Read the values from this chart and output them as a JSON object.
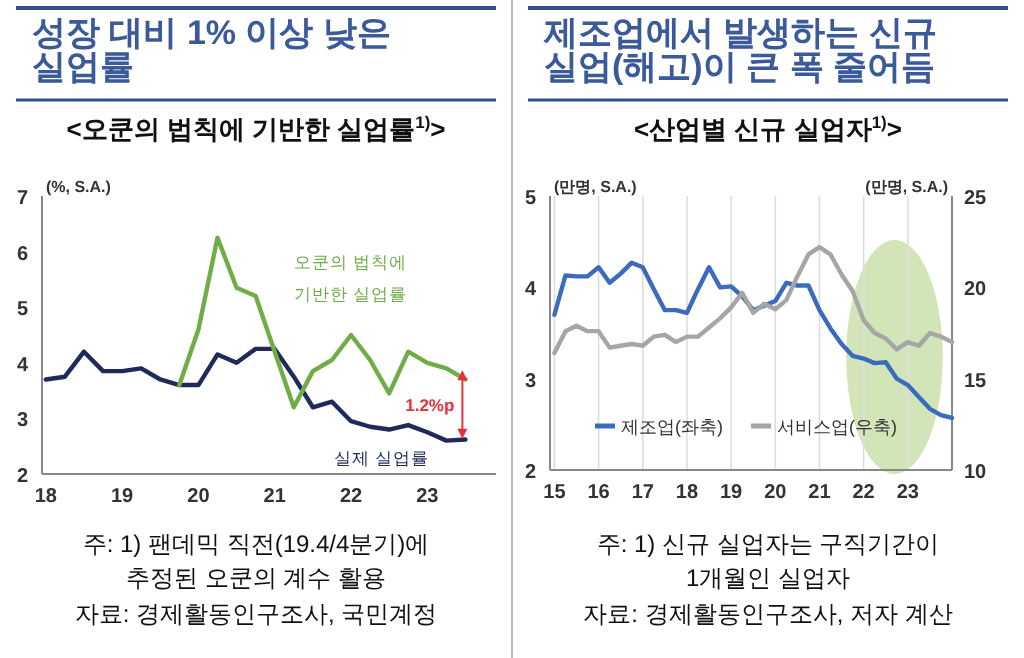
{
  "chart_data": [
    {
      "type": "line",
      "title": "성장 대비 1% 이상 낮은\n실업률",
      "subtitle": "<오쿤의 법칙에 기반한 실업률$^{1)}$>",
      "ylabel": "(%, S.A.)",
      "xlim": [
        17.95,
        23.9
      ],
      "xticks": [
        {
          "value": 18,
          "label": "18"
        },
        {
          "value": 19,
          "label": "19"
        },
        {
          "value": 20,
          "label": "20"
        },
        {
          "value": 21,
          "label": "21"
        },
        {
          "value": 22,
          "label": "22"
        },
        {
          "value": 23,
          "label": "23"
        }
      ],
      "ylim": [
        2,
        7
      ],
      "yticks": [
        2,
        3,
        4,
        5,
        6,
        7
      ],
      "grid": false,
      "legend": false,
      "series": [
        {
          "name": "실제 실업률",
          "color": "#1f2a5c",
          "x": [
            18,
            18.25,
            18.5,
            18.75,
            19,
            19.25,
            19.5,
            19.75,
            20,
            20.25,
            20.5,
            20.75,
            21,
            21.25,
            21.5,
            21.75,
            22,
            22.25,
            22.5,
            22.75,
            23,
            23.25,
            23.5
          ],
          "values": [
            3.7,
            3.75,
            4.2,
            3.85,
            3.85,
            3.9,
            3.7,
            3.6,
            3.6,
            4.15,
            4.0,
            4.25,
            4.25,
            3.75,
            3.2,
            3.3,
            2.95,
            2.85,
            2.8,
            2.88,
            2.75,
            2.6,
            2.62
          ]
        },
        {
          "name": "오쿤의 법칙에\n기반한 실업률",
          "color": "#70ad47",
          "x": [
            19.75,
            20,
            20.25,
            20.5,
            20.75,
            21,
            21.25,
            21.5,
            21.75,
            22,
            22.25,
            22.5,
            22.75,
            23,
            23.25,
            23.5
          ],
          "values": [
            3.6,
            4.6,
            6.25,
            5.35,
            5.2,
            4.2,
            3.2,
            3.85,
            4.05,
            4.5,
            4.05,
            3.45,
            4.2,
            4.0,
            3.9,
            3.7
          ]
        }
      ],
      "annotations": [
        "1.2%p",
        "주: 1) 팬데믹 직전(19.4/4분기)에\n추정된 오쿤의 계수 활용",
        "자료: 경제활동인구조사, 국민계정"
      ]
    },
    {
      "type": "line",
      "title": "제조업에서 발생하는 신규\n실업(해고)이 큰 폭 줄어듬",
      "subtitle": "<산업별 신규 실업자$^{1)}$>",
      "ylabel": "(만명, S.A.)",
      "y2label": "(만명, S.A.)",
      "xlim": [
        14.9,
        24
      ],
      "xticks": [
        {
          "value": 15,
          "label": "15"
        },
        {
          "value": 16,
          "label": "16"
        },
        {
          "value": 17,
          "label": "17"
        },
        {
          "value": 18,
          "label": "18"
        },
        {
          "value": 19,
          "label": "19"
        },
        {
          "value": 20,
          "label": "20"
        },
        {
          "value": 21,
          "label": "21"
        },
        {
          "value": 22,
          "label": "22"
        },
        {
          "value": 23,
          "label": "23"
        }
      ],
      "ylim": [
        2,
        5
      ],
      "yticks": [
        2,
        3,
        4,
        5
      ],
      "y2lim": [
        10,
        25
      ],
      "y2ticks": [
        10,
        15,
        20,
        25
      ],
      "grid": "x",
      "legend": "bottom",
      "series": [
        {
          "name": "제조업(좌축)",
          "color": "#3a6bbf",
          "x": [
            15,
            15.25,
            15.5,
            15.75,
            16,
            16.25,
            16.5,
            16.75,
            17,
            17.25,
            17.5,
            17.75,
            18,
            18.25,
            18.5,
            18.75,
            19,
            19.25,
            19.5,
            19.75,
            20,
            20.25,
            20.5,
            20.75,
            21,
            21.25,
            21.5,
            21.75,
            22,
            22.25,
            22.5,
            22.75,
            23,
            23.25,
            23.5,
            23.75,
            24
          ],
          "values": [
            3.7,
            4.13,
            4.12,
            4.12,
            4.22,
            4.05,
            4.15,
            4.27,
            4.22,
            3.98,
            3.75,
            3.75,
            3.72,
            3.98,
            4.22,
            4.0,
            4.01,
            3.9,
            3.75,
            3.8,
            3.85,
            4.05,
            4.02,
            4.02,
            3.75,
            3.55,
            3.38,
            3.25,
            3.22,
            3.17,
            3.18,
            3.0,
            2.93,
            2.8,
            2.67,
            2.6,
            2.57
          ]
        },
        {
          "name": "서비스업(우축)",
          "color": "#a6a6a6",
          "axis": "y2",
          "x": [
            15,
            15.25,
            15.5,
            15.75,
            16,
            16.25,
            16.5,
            16.75,
            17,
            17.25,
            17.5,
            17.75,
            18,
            18.25,
            18.5,
            18.75,
            19,
            19.25,
            19.5,
            19.75,
            20,
            20.25,
            20.5,
            20.75,
            21,
            21.25,
            21.5,
            21.75,
            22,
            22.25,
            22.5,
            22.75,
            23,
            23.25,
            23.5,
            23.75,
            24
          ],
          "values": [
            16.4,
            17.6,
            17.9,
            17.6,
            17.6,
            16.7,
            16.8,
            16.9,
            16.8,
            17.3,
            17.4,
            17.0,
            17.3,
            17.3,
            17.8,
            18.3,
            18.9,
            19.7,
            18.6,
            19.1,
            18.8,
            19.3,
            20.6,
            21.8,
            22.2,
            21.8,
            20.7,
            19.8,
            18.2,
            17.5,
            17.2,
            16.6,
            17.0,
            16.8,
            17.5,
            17.3,
            17.0
          ]
        }
      ],
      "annotations": [
        "주: 1) 신규 실업자는 구직기간이\n1개월인 실업자",
        "자료: 경제활동인구조사, 저자 계산"
      ]
    }
  ]
}
